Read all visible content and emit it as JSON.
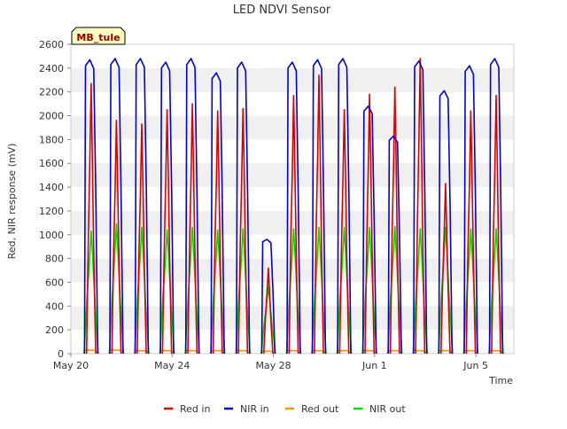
{
  "chart_data": {
    "type": "line",
    "title": "LED NDVI Sensor",
    "xlabel": "Time",
    "ylabel": "Red, NIR response (mV)",
    "badge": "MB_tule",
    "x_range_days_may": [
      20,
      37.5
    ],
    "ylim": [
      0,
      2600
    ],
    "y_ticks": [
      0,
      200,
      400,
      600,
      800,
      1000,
      1200,
      1400,
      1600,
      1800,
      2000,
      2200,
      2400,
      2600
    ],
    "x_tick_labels": [
      "May 20",
      "May 24",
      "May 28",
      "Jun 1",
      "Jun 5"
    ],
    "x_tick_days_may": [
      20,
      24,
      28,
      32,
      36
    ],
    "grid": "horizontal bands",
    "legend_position": "bottom",
    "series_colors": {
      "Red in": "#dd0000",
      "NIR in": "#0000dd",
      "Red out": "#ff9900",
      "NIR out": "#00dd00"
    },
    "daily_peaks": {
      "day_centers_may": [
        20.8,
        21.8,
        22.8,
        23.8,
        24.8,
        25.8,
        26.8,
        27.8,
        28.8,
        29.8,
        30.8,
        31.8,
        32.8,
        33.8,
        34.8,
        35.8,
        36.8
      ],
      "red_in_peak": [
        2270,
        1960,
        1930,
        2050,
        2100,
        2040,
        2060,
        720,
        2170,
        2340,
        2050,
        2180,
        2240,
        2480,
        1430,
        2040,
        2170
      ],
      "nir_in_peak": [
        2470,
        2480,
        2480,
        2450,
        2480,
        2360,
        2450,
        960,
        2450,
        2470,
        2480,
        2080,
        1830,
        2460,
        2210,
        2420,
        2480
      ],
      "red_out_peak": [
        30,
        30,
        25,
        25,
        25,
        25,
        25,
        20,
        25,
        25,
        25,
        25,
        25,
        25,
        25,
        25,
        25
      ],
      "nir_out_peak": [
        1030,
        1090,
        1060,
        1040,
        1060,
        1040,
        1050,
        560,
        1050,
        1060,
        1060,
        1060,
        1070,
        1050,
        1060,
        1050,
        1050
      ]
    }
  },
  "legend": {
    "items": [
      {
        "label": "Red in",
        "color": "#dd0000"
      },
      {
        "label": "NIR in",
        "color": "#0000dd"
      },
      {
        "label": "Red out",
        "color": "#ff9900"
      },
      {
        "label": "NIR out",
        "color": "#00dd00"
      }
    ]
  }
}
